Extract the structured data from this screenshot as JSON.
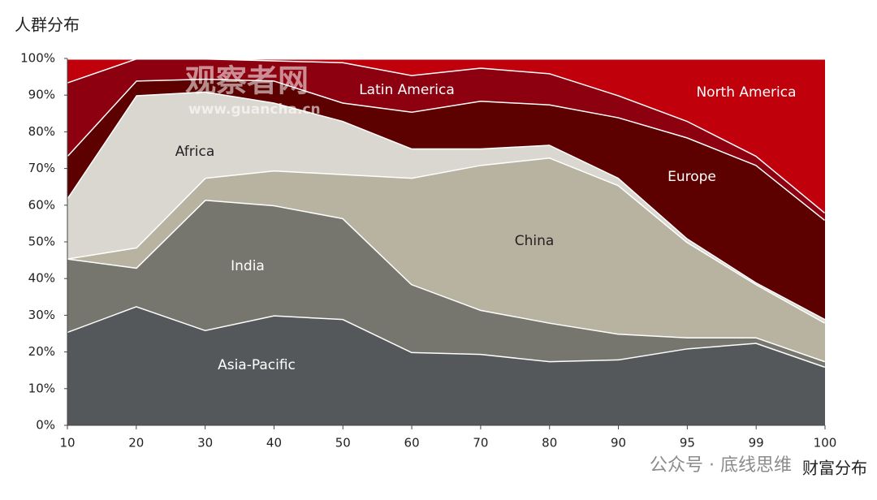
{
  "chart_data": {
    "type": "stacked_area",
    "y_axis_label": "人群分布",
    "x_axis_label": "财富分布",
    "watermarks": [
      "观察者网",
      "www.guancha.cn",
      "公众号 · 底线思维"
    ],
    "categories": [
      "10",
      "20",
      "30",
      "40",
      "50",
      "60",
      "70",
      "80",
      "90",
      "95",
      "99",
      "100"
    ],
    "ylim": [
      0,
      100
    ],
    "yticks": [
      {
        "value": 0,
        "label": "0%"
      },
      {
        "value": 10,
        "label": "10%"
      },
      {
        "value": 20,
        "label": "20%"
      },
      {
        "value": 30,
        "label": "30%"
      },
      {
        "value": 40,
        "label": "40%"
      },
      {
        "value": 50,
        "label": "50%"
      },
      {
        "value": 60,
        "label": "60%"
      },
      {
        "value": 70,
        "label": "70%"
      },
      {
        "value": 80,
        "label": "80%"
      },
      {
        "value": 90,
        "label": "90%"
      },
      {
        "value": 100,
        "label": "100%"
      }
    ],
    "series": [
      {
        "name": "Asia-Pacific",
        "color": "#55585a",
        "values": [
          25.5,
          32.5,
          26,
          30,
          29,
          20,
          19.5,
          17.5,
          18,
          21,
          22.5,
          16
        ]
      },
      {
        "name": "India",
        "color": "#77766e",
        "values": [
          20,
          10.5,
          35.5,
          30,
          27.5,
          18.5,
          12,
          10.5,
          7,
          3,
          1.5,
          1.5
        ]
      },
      {
        "name": "China",
        "color": "#b8b3a0",
        "values": [
          0,
          5.5,
          6,
          9.5,
          12,
          29,
          39.5,
          45,
          40.5,
          26,
          14.5,
          10.5
        ]
      },
      {
        "name": "Africa",
        "color": "#d9d7d0",
        "values": [
          16.5,
          41.5,
          23.5,
          18.5,
          14.5,
          8,
          4.5,
          3.5,
          2,
          1,
          0.5,
          1
        ]
      },
      {
        "name": "Europe",
        "color": "#5c0000",
        "values": [
          11.5,
          4,
          3.5,
          6,
          5,
          10,
          13,
          11,
          16.5,
          27.5,
          32,
          27
        ]
      },
      {
        "name": "Latin America",
        "color": "#8c0010",
        "values": [
          20,
          6,
          5.5,
          5.5,
          11,
          10,
          9,
          8.5,
          6,
          4.5,
          2.5,
          2
        ]
      },
      {
        "name": "North America",
        "color": "#c0000b",
        "values": [
          6.5,
          0,
          0,
          0.5,
          1,
          4.5,
          2.5,
          4,
          10,
          17,
          26.5,
          42
        ]
      }
    ]
  }
}
